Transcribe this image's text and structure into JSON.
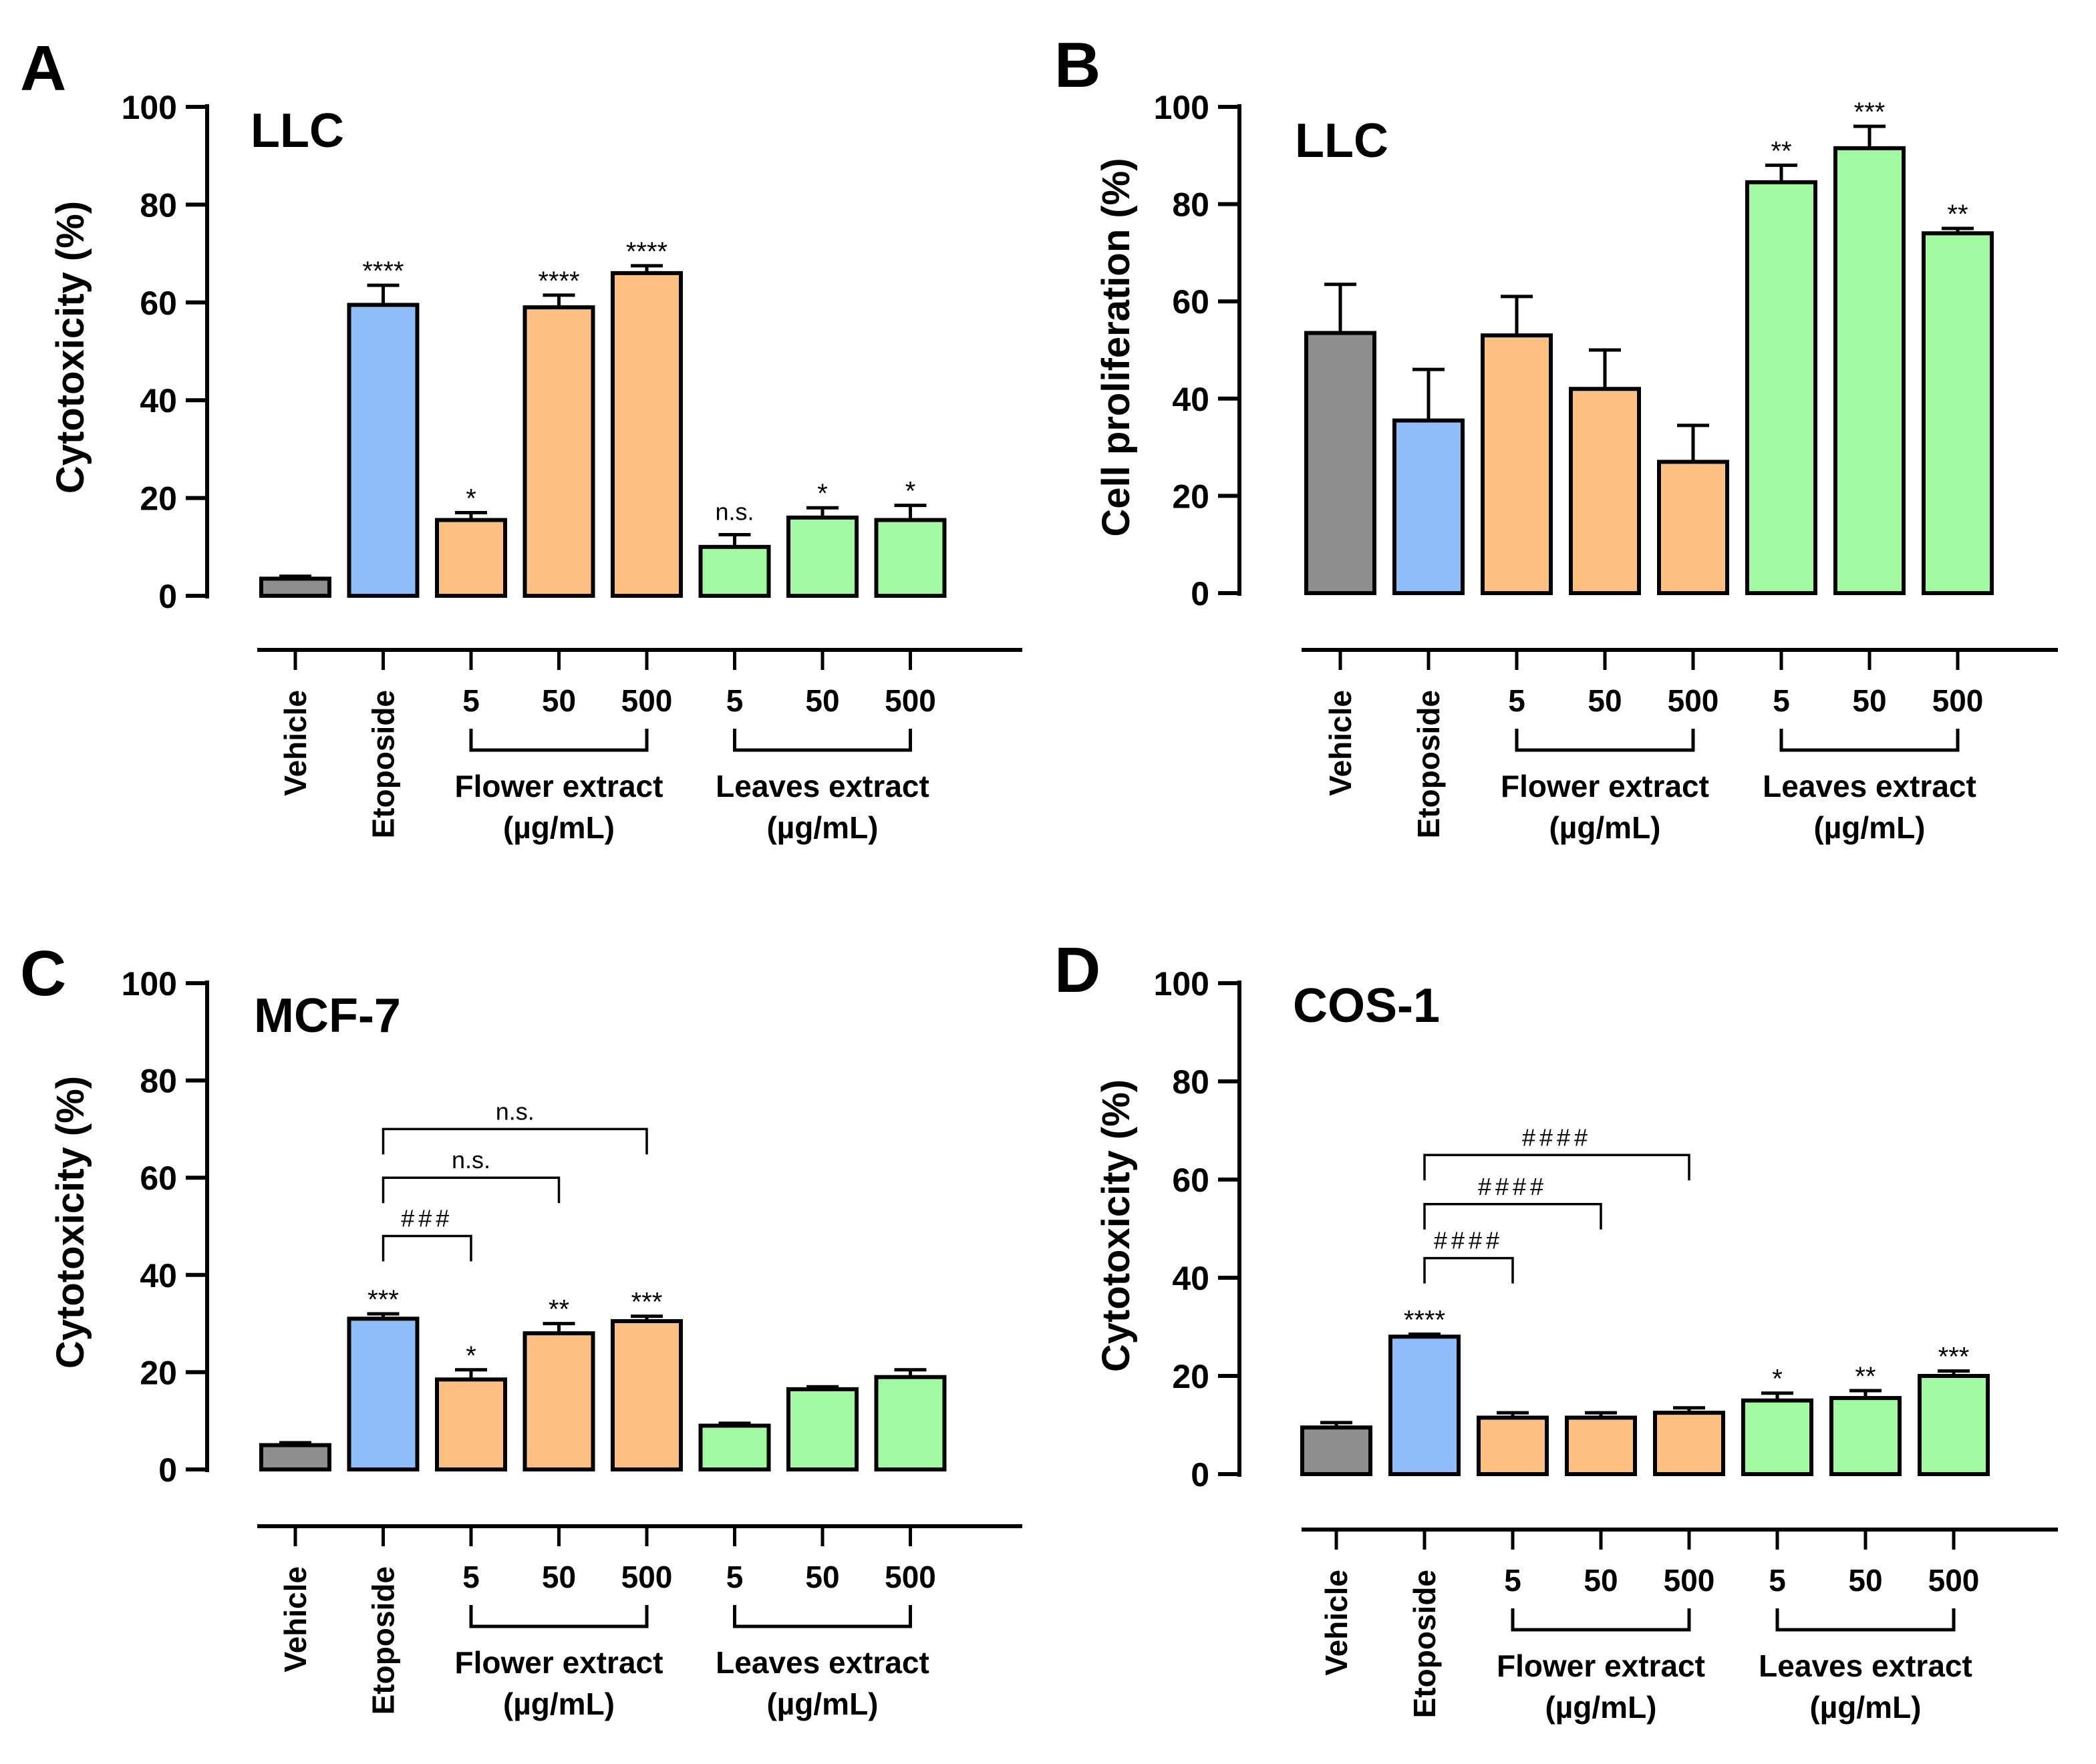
{
  "colors": {
    "vehicle": "#8e8e8e",
    "etoposide": "#8fbdfa",
    "flower": "#fdc080",
    "leaves": "#a1f9a2",
    "stroke": "#000000"
  },
  "x_categories": [
    "Vehicle",
    "Etoposide",
    "5",
    "50",
    "500",
    "5",
    "50",
    "500"
  ],
  "groups": [
    {
      "name": "Flower extract",
      "unit": "(µg/mL)",
      "bars": [
        2,
        3,
        4
      ]
    },
    {
      "name": "Leaves extract",
      "unit": "(µg/mL)",
      "bars": [
        5,
        6,
        7
      ]
    }
  ],
  "chart_data": [
    {
      "type": "bar",
      "panel": "A",
      "title": "LLC",
      "ylabel": "Cytotoxicity (%)",
      "ylim": [
        0,
        100
      ],
      "yticks": [
        "0",
        "20",
        "40",
        "60",
        "80",
        "100"
      ],
      "categories": [
        "Vehicle",
        "Etoposide",
        "Flower 5",
        "Flower 50",
        "Flower 500",
        "Leaves 5",
        "Leaves 50",
        "Leaves 500"
      ],
      "values": [
        3.5,
        59.5,
        15.5,
        59,
        66,
        10,
        16,
        15.5
      ],
      "errors": [
        0.5,
        4,
        1.5,
        2.5,
        1.5,
        2.5,
        2,
        3
      ],
      "significance": [
        "",
        "****",
        "*",
        "****",
        "****",
        "n.s.",
        "*",
        "*"
      ],
      "brackets": []
    },
    {
      "type": "bar",
      "panel": "B",
      "title": "LLC",
      "ylabel": "Cell proliferation (%)",
      "ylim": [
        0,
        100
      ],
      "yticks": [
        "0",
        "20",
        "40",
        "60",
        "80",
        "100"
      ],
      "categories": [
        "Vehicle",
        "Etoposide",
        "Flower 5",
        "Flower 50",
        "Flower 500",
        "Leaves 5",
        "Leaves 50",
        "Leaves 500"
      ],
      "values": [
        53.5,
        35.5,
        53,
        42,
        27,
        84.5,
        91.5,
        74
      ],
      "errors": [
        10,
        10.5,
        8,
        8,
        7.5,
        3.5,
        4.5,
        1
      ],
      "significance": [
        "",
        "",
        "",
        "",
        "",
        "**",
        "***",
        "**"
      ],
      "brackets": []
    },
    {
      "type": "bar",
      "panel": "C",
      "title": "MCF-7",
      "ylabel": "Cytotoxicity (%)",
      "ylim": [
        0,
        100
      ],
      "yticks": [
        "0",
        "20",
        "40",
        "60",
        "80",
        "100"
      ],
      "categories": [
        "Vehicle",
        "Etoposide",
        "Flower 5",
        "Flower 50",
        "Flower 500",
        "Leaves 5",
        "Leaves 50",
        "Leaves 500"
      ],
      "values": [
        5,
        31,
        18.5,
        28,
        30.5,
        9,
        16.5,
        19
      ],
      "errors": [
        0.5,
        1,
        2,
        2,
        1,
        0.5,
        0.5,
        1.5
      ],
      "significance": [
        "",
        "***",
        "*",
        "**",
        "***",
        "",
        "",
        ""
      ],
      "brackets": [
        {
          "from": 1,
          "to": 2,
          "label": "###",
          "y": 48
        },
        {
          "from": 1,
          "to": 3,
          "label": "n.s.",
          "y": 60
        },
        {
          "from": 1,
          "to": 4,
          "label": "n.s.",
          "y": 70
        }
      ]
    },
    {
      "type": "bar",
      "panel": "D",
      "title": "COS-1",
      "ylabel": "Cytotoxicity (%)",
      "ylim": [
        0,
        100
      ],
      "yticks": [
        "0",
        "20",
        "40",
        "60",
        "80",
        "100"
      ],
      "categories": [
        "Vehicle",
        "Etoposide",
        "Flower 5",
        "Flower 50",
        "Flower 500",
        "Leaves 5",
        "Leaves 50",
        "Leaves 500"
      ],
      "values": [
        9.5,
        28,
        11.5,
        11.5,
        12.5,
        15,
        15.5,
        20
      ],
      "errors": [
        1,
        0.5,
        1,
        1,
        1,
        1.5,
        1.5,
        1
      ],
      "significance": [
        "",
        "****",
        "",
        "",
        "",
        "*",
        "**",
        "***"
      ],
      "brackets": [
        {
          "from": 1,
          "to": 2,
          "label": "####",
          "y": 44
        },
        {
          "from": 1,
          "to": 3,
          "label": "####",
          "y": 55
        },
        {
          "from": 1,
          "to": 4,
          "label": "####",
          "y": 65
        }
      ]
    }
  ]
}
